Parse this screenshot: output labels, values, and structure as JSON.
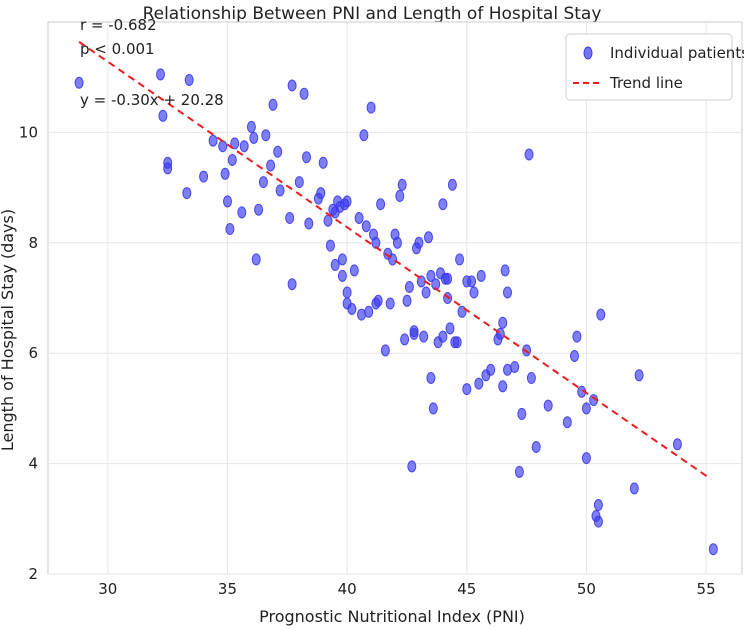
{
  "chart_data": {
    "type": "scatter",
    "title": "Relationship Between PNI and Length of Hospital Stay",
    "xlabel": "Prognostic Nutritional Index (PNI)",
    "ylabel": "Length of Hospital Stay (days)",
    "xlim": [
      27.5,
      56.5
    ],
    "ylim": [
      2,
      12
    ],
    "xticks": [
      30,
      35,
      40,
      45,
      50,
      55
    ],
    "yticks": [
      2,
      4,
      6,
      8,
      10
    ],
    "xtick_labels": [
      "30",
      "35",
      "40",
      "45",
      "50",
      "55"
    ],
    "ytick_labels": [
      "2",
      "4",
      "6",
      "8",
      "10"
    ],
    "grid": true,
    "legend_position": "top-right",
    "legend": [
      {
        "label": "Individual patients",
        "kind": "marker",
        "color": "#3a3af0"
      },
      {
        "label": "Trend line",
        "kind": "dashed-line",
        "color": "#ee1c1c"
      }
    ],
    "annotations": [
      "r = -0.682",
      "p < 0.001",
      "y = -0.30x + 20.28"
    ],
    "trend_line": {
      "slope": -0.3,
      "intercept": 20.28,
      "x_range": [
        28.8,
        55.2
      ],
      "color": "#ee1c1c"
    },
    "point_color": "#3a3af0",
    "series": [
      {
        "name": "Individual patients",
        "x": [
          28.8,
          32.2,
          32.3,
          32.5,
          32.5,
          33.4,
          33.3,
          34.0,
          34.4,
          34.8,
          34.9,
          35.0,
          35.1,
          35.2,
          35.3,
          35.6,
          35.7,
          36.0,
          36.1,
          36.3,
          36.5,
          36.6,
          36.8,
          36.9,
          37.1,
          37.2,
          37.6,
          37.7,
          37.7,
          38.0,
          38.2,
          38.3,
          38.4,
          38.8,
          38.9,
          39.0,
          39.2,
          39.3,
          39.4,
          39.5,
          39.5,
          39.6,
          39.7,
          39.8,
          39.8,
          39.9,
          40.0,
          40.0,
          40.0,
          40.2,
          40.3,
          40.5,
          40.6,
          40.7,
          40.8,
          40.9,
          41.0,
          41.1,
          41.2,
          41.2,
          41.3,
          41.4,
          41.6,
          41.7,
          41.9,
          42.0,
          42.1,
          42.2,
          42.3,
          42.4,
          42.5,
          42.6,
          42.7,
          42.8,
          42.9,
          43.0,
          43.1,
          43.2,
          43.3,
          43.4,
          43.5,
          43.5,
          43.7,
          43.8,
          43.9,
          44.0,
          44.0,
          44.1,
          44.2,
          44.2,
          44.3,
          44.4,
          44.5,
          44.6,
          44.7,
          44.8,
          45.0,
          45.0,
          45.2,
          45.3,
          45.5,
          45.6,
          45.8,
          46.0,
          46.3,
          46.4,
          46.5,
          46.5,
          46.6,
          46.7,
          46.7,
          47.0,
          47.2,
          47.3,
          47.5,
          47.6,
          47.7,
          47.9,
          48.4,
          49.2,
          49.5,
          49.6,
          49.8,
          50.0,
          50.0,
          50.3,
          50.4,
          50.5,
          50.5,
          50.6,
          52.0,
          52.2,
          53.8,
          55.3,
          43.6,
          41.8,
          42.8,
          36.2
        ],
        "y": [
          10.9,
          11.05,
          10.3,
          9.45,
          9.35,
          10.95,
          8.9,
          9.2,
          9.85,
          9.75,
          9.25,
          8.75,
          8.25,
          9.5,
          9.8,
          8.55,
          9.75,
          10.1,
          9.9,
          8.6,
          9.1,
          9.95,
          9.4,
          10.5,
          9.65,
          8.95,
          8.45,
          7.25,
          10.85,
          9.1,
          10.7,
          9.55,
          8.35,
          8.8,
          8.9,
          9.45,
          8.4,
          7.95,
          8.6,
          8.55,
          7.6,
          8.75,
          8.65,
          7.4,
          7.7,
          8.7,
          8.75,
          7.1,
          6.9,
          6.8,
          7.5,
          8.45,
          6.7,
          9.95,
          8.3,
          6.75,
          10.45,
          8.15,
          8.0,
          6.9,
          6.95,
          8.7,
          6.05,
          7.8,
          7.7,
          8.15,
          8.0,
          8.85,
          9.05,
          6.25,
          6.95,
          7.2,
          3.95,
          6.35,
          7.9,
          8.0,
          7.3,
          6.3,
          7.1,
          8.1,
          7.4,
          5.55,
          7.25,
          6.2,
          7.45,
          6.3,
          8.7,
          7.35,
          7.0,
          7.35,
          6.45,
          9.05,
          6.2,
          6.2,
          7.7,
          6.75,
          7.3,
          5.35,
          7.3,
          7.1,
          5.45,
          7.4,
          5.6,
          5.7,
          6.25,
          6.35,
          6.55,
          5.4,
          7.5,
          5.7,
          7.1,
          5.75,
          3.85,
          4.9,
          6.05,
          9.6,
          5.55,
          4.3,
          5.05,
          4.75,
          5.95,
          6.3,
          5.3,
          4.1,
          5.0,
          5.15,
          3.05,
          2.95,
          3.25,
          6.7,
          3.55,
          5.6,
          4.35,
          2.45,
          5.0,
          6.9,
          6.4,
          7.7
        ]
      }
    ]
  }
}
